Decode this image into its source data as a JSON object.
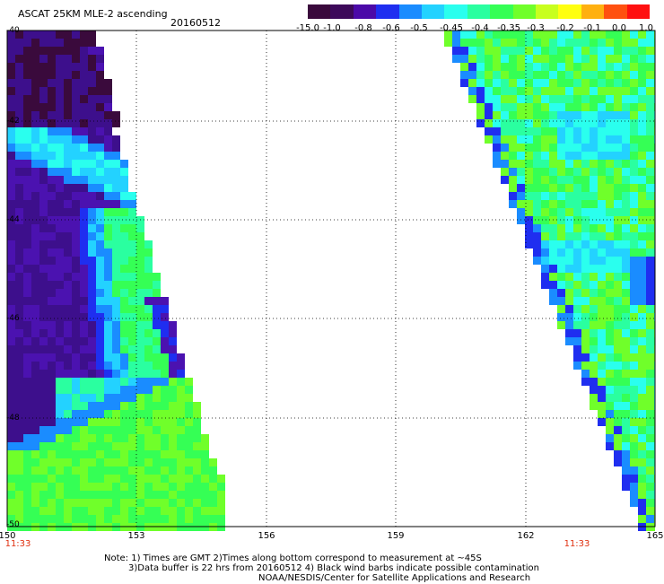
{
  "header": {
    "title": "ASCAT 25KM MLE-2 ascending",
    "date": "20160512"
  },
  "colorbar": {
    "labels": [
      "-15.0",
      "-1.0",
      "-0.8",
      "-0.6",
      "-0.5",
      "-0.45",
      "-0.4",
      "-0.35",
      "-0.3",
      "-0.2",
      "-0.1",
      "0.0",
      "1.0"
    ],
    "colors": [
      "#3a0a3c",
      "#3d0a5a",
      "#4b0aa8",
      "#1f2ef0",
      "#1a8cff",
      "#23d2ff",
      "#2affee",
      "#2affa0",
      "#35ff55",
      "#70ff2a",
      "#c8ff1e",
      "#ffff10",
      "#ffb010",
      "#ff5010",
      "#ff1010"
    ]
  },
  "map": {
    "lon_range": [
      150,
      165
    ],
    "lat_range": [
      -50,
      -40
    ],
    "x_ticks": [
      "150",
      "153",
      "156",
      "159",
      "162",
      "165"
    ],
    "y_ticks": [
      "-40",
      "-42",
      "-44",
      "-46",
      "-48",
      "-50"
    ],
    "time_labels": [
      "11:33",
      "11:33"
    ]
  },
  "notes": {
    "line1": "Note: 1) Times are GMT 2)Times along bottom correspond to measurement at ~45S",
    "line2": "3)Data buffer is 22 hrs from 20160512 4) Black wind barbs indicate possible contamination",
    "line3": "NOAA/NESDIS/Center for Satellite Applications and Research"
  }
}
